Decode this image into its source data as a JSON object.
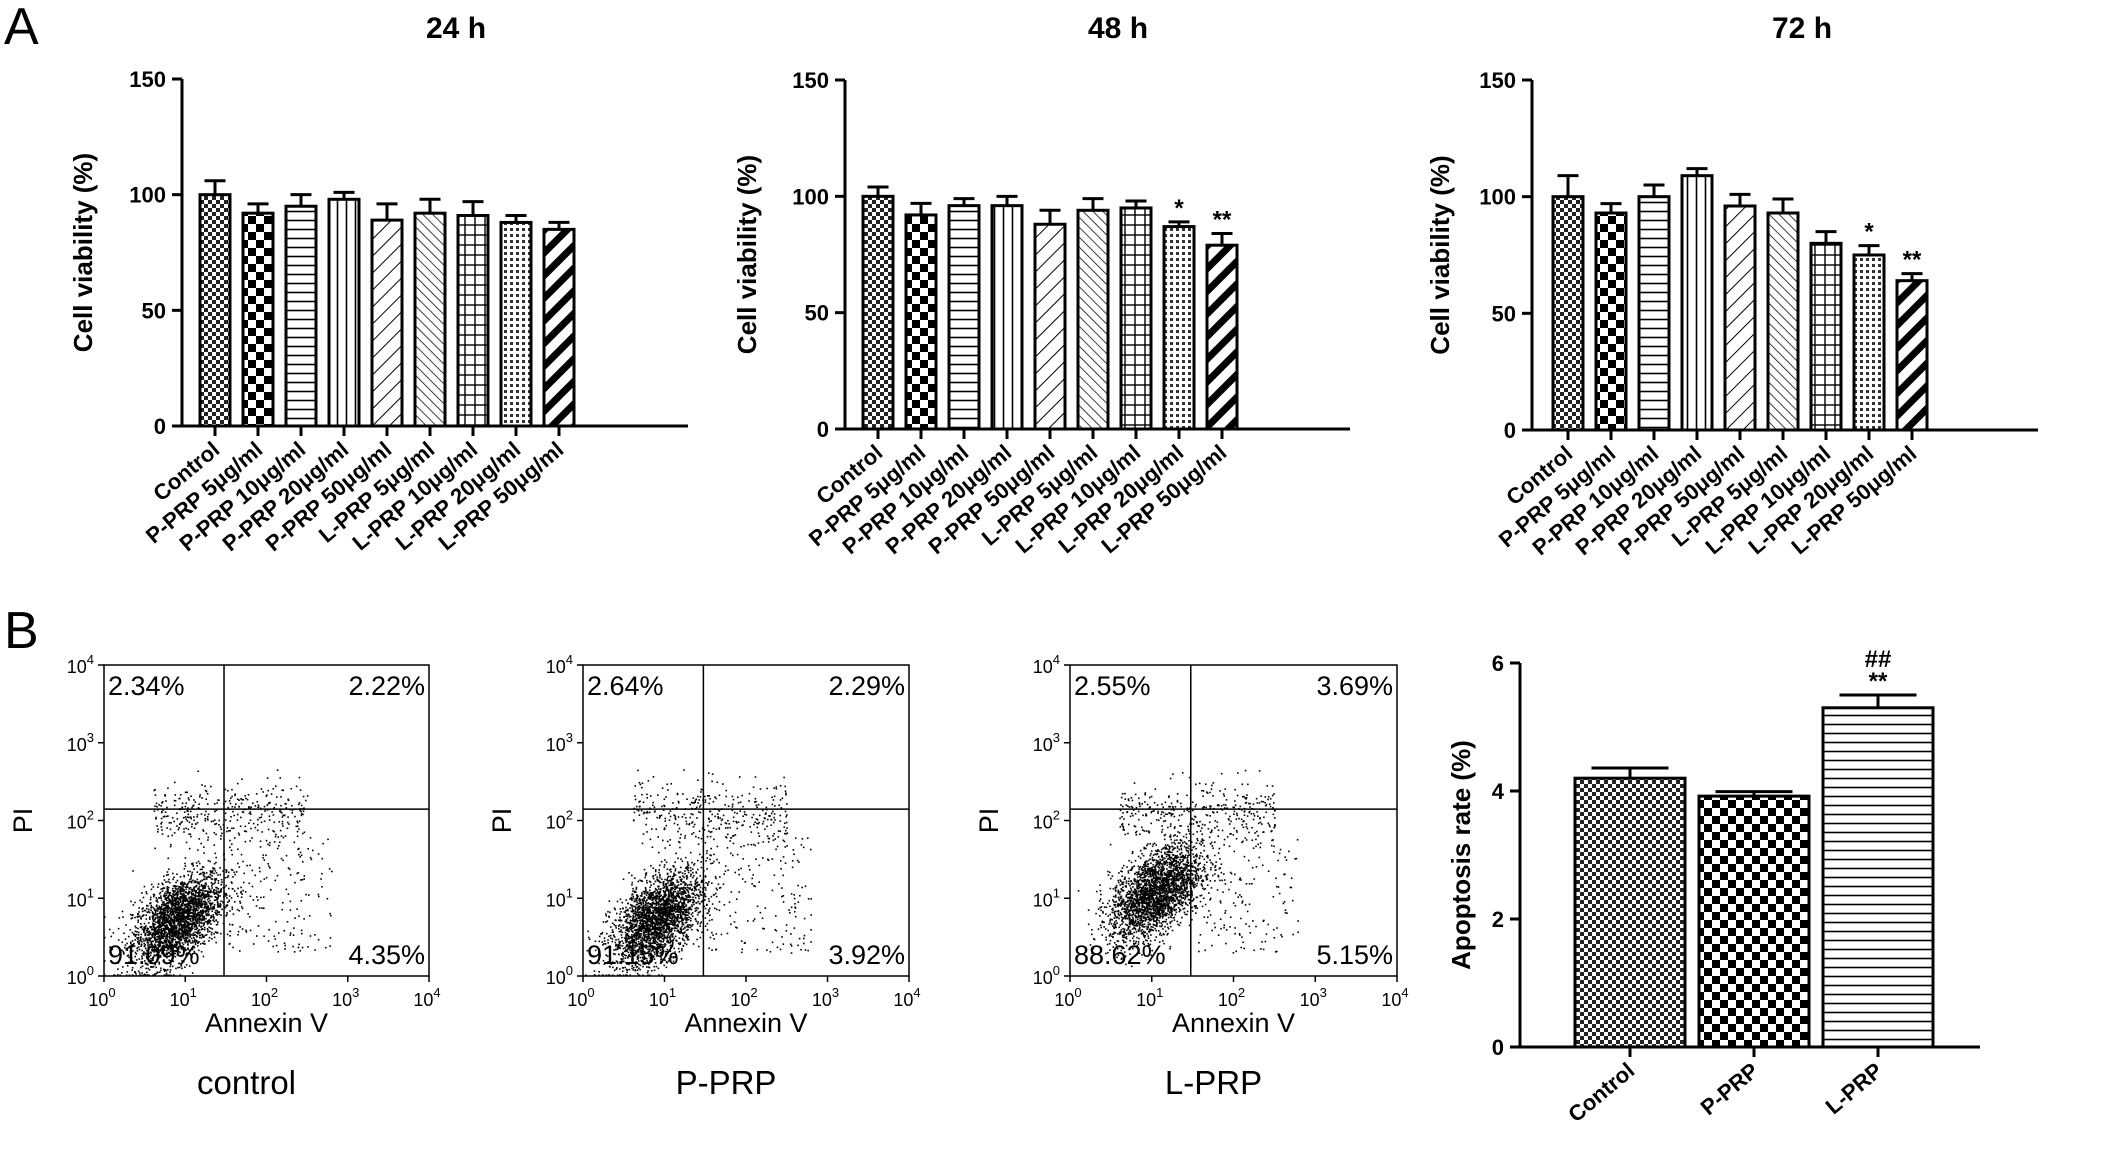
{
  "panel_labels": {
    "a": "A",
    "b": "B"
  },
  "chart_data": [
    {
      "id": "viability_24h",
      "type": "bar",
      "title": "24 h",
      "xlabel": "",
      "ylabel": "Cell viability (%)",
      "ylim": [
        0,
        150
      ],
      "yticks": [
        0,
        50,
        100,
        150
      ],
      "categories": [
        "Control",
        "P-PRP 5μg/ml",
        "P-PRP 10μg/ml",
        "P-PRP 20μg/ml",
        "P-PRP 50μg/ml",
        "L-PRP 5μg/ml",
        "L-PRP 10μg/ml",
        "L-PRP 20μg/ml",
        "L-PRP 50μg/ml"
      ],
      "values": [
        100,
        92,
        95,
        98,
        89,
        92,
        91,
        88,
        85
      ],
      "errors": [
        6,
        4,
        5,
        3,
        7,
        6,
        6,
        3,
        3
      ],
      "significance": [
        "",
        "",
        "",
        "",
        "",
        "",
        "",
        "",
        ""
      ],
      "patterns": [
        "checker-fine",
        "checker",
        "hlines",
        "vlines",
        "diag-sparse",
        "diag-dense",
        "grid",
        "dots",
        "diag-thick"
      ]
    },
    {
      "id": "viability_48h",
      "type": "bar",
      "title": "48 h",
      "xlabel": "",
      "ylabel": "Cell viability (%)",
      "ylim": [
        0,
        150
      ],
      "yticks": [
        0,
        50,
        100,
        150
      ],
      "categories": [
        "Control",
        "P-PRP 5μg/ml",
        "P-PRP 10μg/ml",
        "P-PRP 20μg/ml",
        "P-PRP 50μg/ml",
        "L-PRP 5μg/ml",
        "L-PRP 10μg/ml",
        "L-PRP 20μg/ml",
        "L-PRP 50μg/ml"
      ],
      "values": [
        100,
        92,
        96,
        96,
        88,
        94,
        95,
        87,
        79
      ],
      "errors": [
        4,
        5,
        3,
        4,
        6,
        5,
        3,
        2,
        5
      ],
      "significance": [
        "",
        "",
        "",
        "",
        "",
        "",
        "",
        "*",
        "**"
      ],
      "patterns": [
        "checker-fine",
        "checker",
        "hlines",
        "vlines",
        "diag-sparse",
        "diag-dense",
        "grid",
        "dots",
        "diag-thick"
      ]
    },
    {
      "id": "viability_72h",
      "type": "bar",
      "title": "72 h",
      "xlabel": "",
      "ylabel": "Cell viability (%)",
      "ylim": [
        0,
        150
      ],
      "yticks": [
        0,
        50,
        100,
        150
      ],
      "categories": [
        "Control",
        "P-PRP 5μg/ml",
        "P-PRP 10μg/ml",
        "P-PRP 20μg/ml",
        "P-PRP 50μg/ml",
        "L-PRP 5μg/ml",
        "L-PRP 10μg/ml",
        "L-PRP 20μg/ml",
        "L-PRP 50μg/ml"
      ],
      "values": [
        100,
        93,
        100,
        109,
        96,
        93,
        80,
        75,
        64
      ],
      "errors": [
        9,
        4,
        5,
        3,
        5,
        6,
        5,
        4,
        3
      ],
      "significance": [
        "",
        "",
        "",
        "",
        "",
        "",
        "",
        "*",
        "**"
      ],
      "patterns": [
        "checker-fine",
        "checker",
        "hlines",
        "vlines",
        "diag-sparse",
        "diag-dense",
        "grid",
        "dots",
        "diag-thick"
      ]
    },
    {
      "id": "apoptosis_rate",
      "type": "bar",
      "title": "",
      "xlabel": "",
      "ylabel": "Apoptosis rate (%)",
      "ylim": [
        0,
        6
      ],
      "yticks": [
        0,
        2,
        4,
        6
      ],
      "categories": [
        "Control",
        "P-PRP",
        "L-PRP"
      ],
      "values": [
        4.2,
        3.92,
        5.3
      ],
      "errors": [
        0.16,
        0.07,
        0.2
      ],
      "significance": [
        "",
        "",
        "**"
      ],
      "significance2": [
        "",
        "",
        "##"
      ],
      "patterns": [
        "checker-fine",
        "checker",
        "hlines"
      ]
    }
  ],
  "flow_cytometry": {
    "xlabel": "Annexin V",
    "ylabel": "PI",
    "tick_base": "10",
    "tick_exponents": [
      "0",
      "1",
      "2",
      "3",
      "4"
    ],
    "panels": [
      {
        "id": "control",
        "title": "control",
        "upper_left": "2.34%",
        "upper_right": "2.22%",
        "lower_left": "91.09%",
        "lower_right": "4.35%",
        "gate_x": 30,
        "gate_y": 140,
        "cluster_x": 8,
        "cluster_y": 5.5
      },
      {
        "id": "p_prp",
        "title": "P-PRP",
        "upper_left": "2.64%",
        "upper_right": "2.29%",
        "lower_left": "91.15%",
        "lower_right": "3.92%",
        "gate_x": 30,
        "gate_y": 140,
        "cluster_x": 8,
        "cluster_y": 5.5
      },
      {
        "id": "l_prp",
        "title": "L-PRP",
        "upper_left": "2.55%",
        "upper_right": "3.69%",
        "lower_left": "88.62%",
        "lower_right": "5.15%",
        "gate_x": 30,
        "gate_y": 140,
        "cluster_x": 11,
        "cluster_y": 12
      }
    ]
  }
}
